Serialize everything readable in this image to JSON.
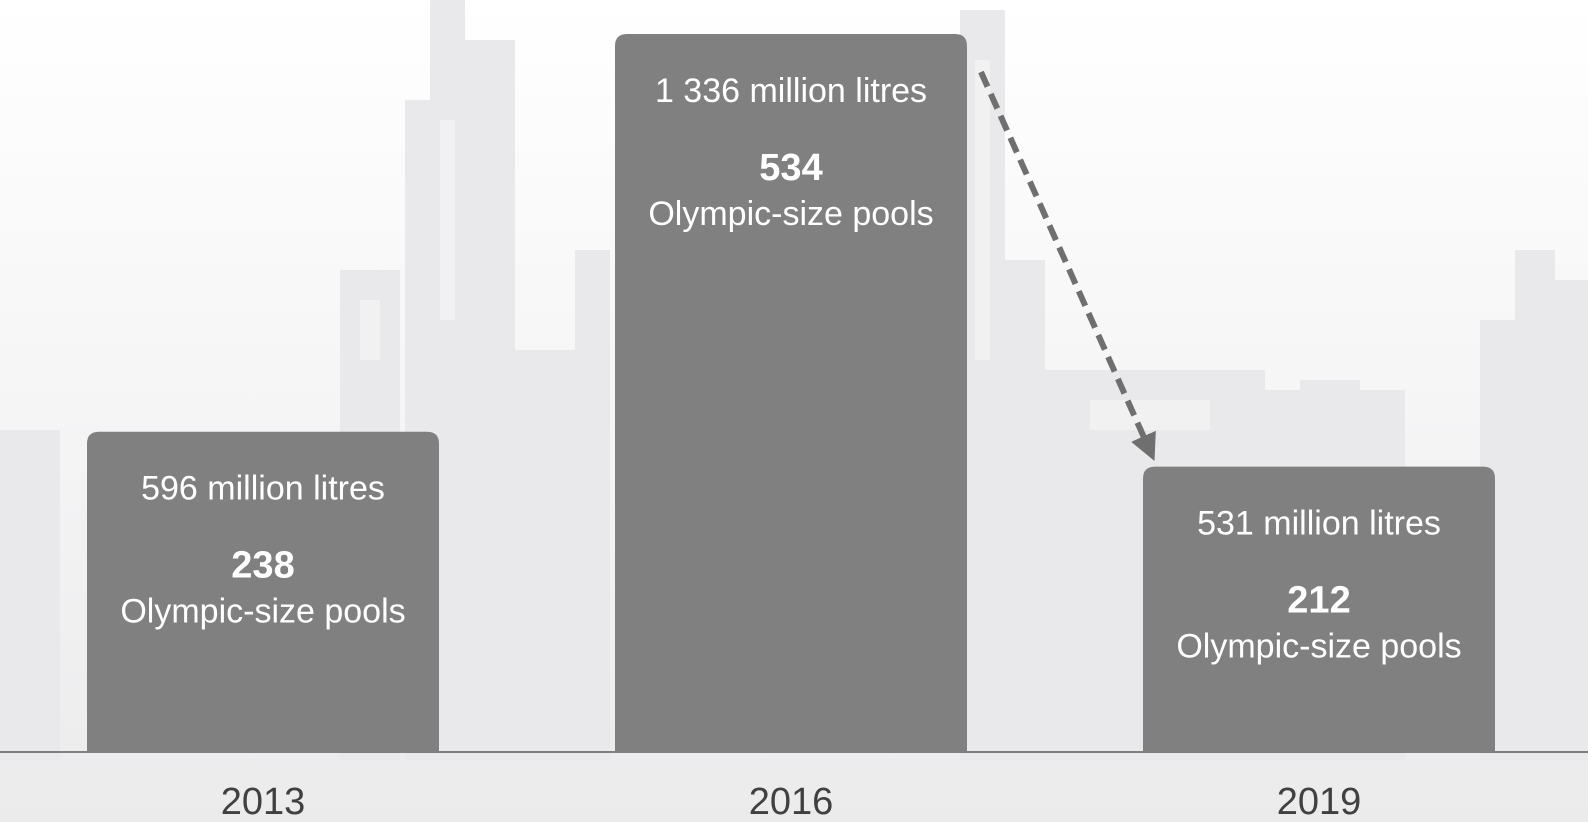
{
  "chart_data": {
    "type": "bar",
    "categories": [
      "2013",
      "2016",
      "2019"
    ],
    "series": [
      {
        "values": [
          596,
          1336,
          531
        ]
      }
    ],
    "data_labels": [
      {
        "volume": "596 million litres",
        "pools": "238",
        "unit": "Olympic-size pools"
      },
      {
        "volume": "1 336 million litres",
        "pools": "534",
        "unit": "Olympic-size pools"
      },
      {
        "volume": "531 million litres",
        "pools": "212",
        "unit": "Olympic-size pools"
      }
    ],
    "pools": [
      238,
      534,
      212
    ],
    "title": "",
    "xlabel": "",
    "ylabel": "",
    "ylim": [
      0,
      1336
    ],
    "grid": false,
    "legend": "none",
    "annotation": {
      "type": "dashed-arrow",
      "from": "2016",
      "to": "2019"
    },
    "colors": {
      "bar": "#808080",
      "baseline": "#7f7f7f",
      "arrow": "#6f6f6f",
      "label_text": "#ffffff",
      "tick_text": "#404040",
      "background_silhouette": "#e6e6e8"
    }
  }
}
